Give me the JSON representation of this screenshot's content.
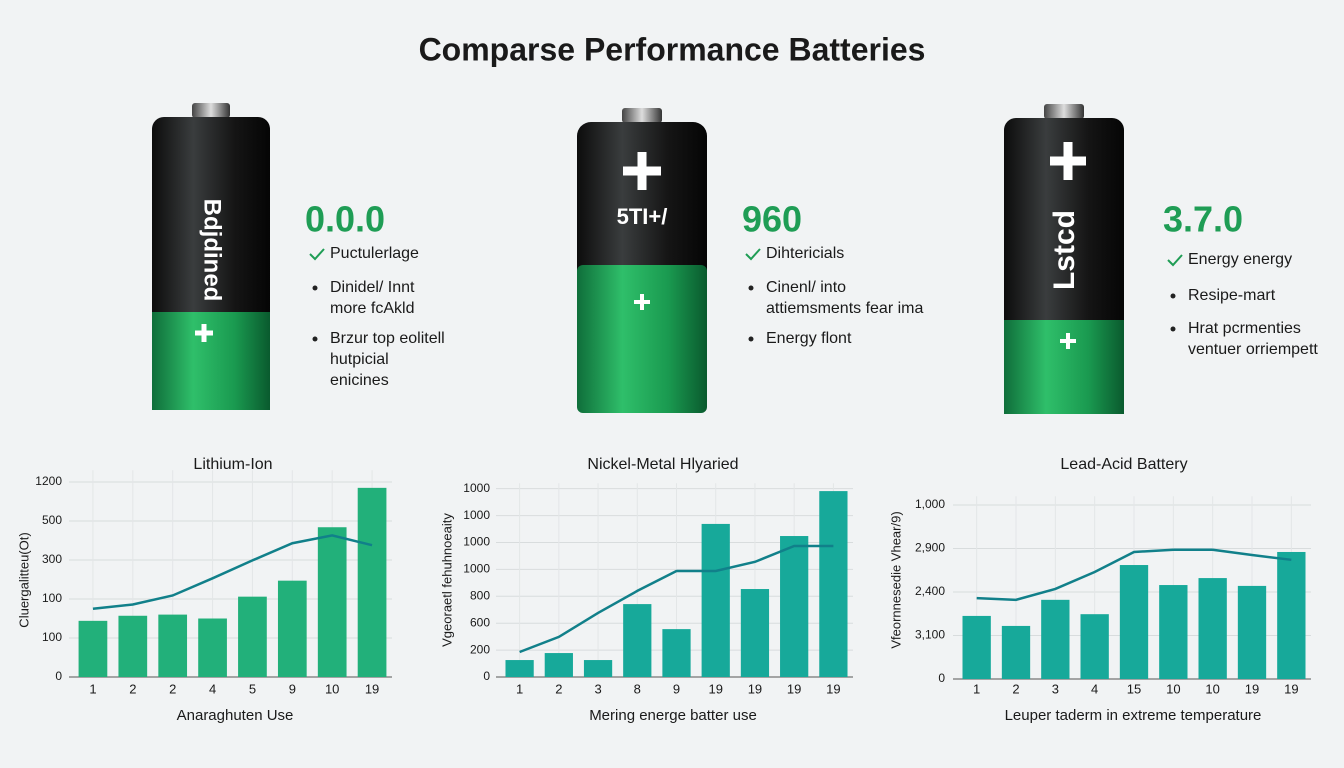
{
  "title": "Comparse Performance Batteries",
  "panels": [
    {
      "battery_label": "Bdjdined",
      "stat": "0.0.0",
      "items": [
        [
          "Puctulerlage"
        ],
        [
          "Dinidel/ Innt",
          "more fcAkld"
        ],
        [
          "Brzur top eolitell",
          "hutpicial",
          "enicines"
        ]
      ]
    },
    {
      "battery_label": "5TI+/",
      "stat": "960",
      "items": [
        [
          "Dihtericials"
        ],
        [
          "Cinenl/ into",
          "attiemsments fear ima"
        ],
        [
          "Energy flont"
        ]
      ]
    },
    {
      "battery_label": "Lstcd",
      "stat": "3.7.0",
      "items": [
        [
          "Energy energy"
        ],
        [
          "Resipe-mart"
        ],
        [
          "Hrat pcrmenties",
          "ventuer orriempett"
        ]
      ]
    }
  ],
  "chart_data": [
    {
      "type": "combo",
      "title": "Lithium-Ion",
      "x_label": "Anaraghuten Use",
      "y_label": "Cluergalitteu(Ot)",
      "categories": [
        "1",
        "2",
        "2",
        "4",
        "5",
        "9",
        "10",
        "19"
      ],
      "series": [
        {
          "type": "bar",
          "color": "#22b07a",
          "values": [
            1.44,
            1.57,
            1.6,
            1.5,
            2.06,
            2.47,
            3.84,
            4.85
          ]
        },
        {
          "type": "line",
          "color": "#11808a",
          "values": [
            1.75,
            1.86,
            2.09,
            2.53,
            2.99,
            3.43,
            3.63,
            3.38
          ]
        }
      ],
      "ylim": [
        0,
        5.3
      ],
      "yticks": [
        {
          "value": 0,
          "label": "0"
        },
        {
          "value": 1,
          "label": "100"
        },
        {
          "value": 2,
          "label": "100"
        },
        {
          "value": 3,
          "label": "300"
        },
        {
          "value": 4,
          "label": "500"
        },
        {
          "value": 5,
          "label": "1200"
        }
      ],
      "grid": true
    },
    {
      "type": "combo",
      "title": "Nickel-Metal Hlyaried",
      "x_label": "Mering energe batter use",
      "y_label": "Vgeoraetl fehuhnoeaity",
      "categories": [
        "1",
        "2",
        "3",
        "8",
        "9",
        "19",
        "19",
        "19",
        "19"
      ],
      "series": [
        {
          "type": "bar",
          "color": "#17a99a",
          "values": [
            0.63,
            0.89,
            0.63,
            2.71,
            1.78,
            5.69,
            3.27,
            5.24,
            6.91
          ]
        },
        {
          "type": "line",
          "color": "#11808a",
          "values": [
            0.93,
            1.49,
            2.38,
            3.2,
            3.94,
            3.94,
            4.28,
            4.87,
            4.87
          ]
        }
      ],
      "ylim": [
        0,
        7.2
      ],
      "yticks": [
        {
          "value": 0,
          "label": "0"
        },
        {
          "value": 1,
          "label": "200"
        },
        {
          "value": 2,
          "label": "600"
        },
        {
          "value": 3,
          "label": "800"
        },
        {
          "value": 4,
          "label": "1000"
        },
        {
          "value": 5,
          "label": "1000"
        },
        {
          "value": 6,
          "label": "1000"
        },
        {
          "value": 7,
          "label": "1000"
        }
      ],
      "grid": true
    },
    {
      "type": "combo",
      "title": "Lead-Acid Battery",
      "x_label": "Leuper taderm in extreme temperature",
      "y_label": "Vfeornnesedie Vhear/9)",
      "categories": [
        "1",
        "2",
        "3",
        "4",
        "15",
        "10",
        "10",
        "19",
        "19"
      ],
      "series": [
        {
          "type": "bar",
          "color": "#17a99a",
          "values": [
            1.45,
            1.22,
            1.82,
            1.49,
            2.62,
            2.16,
            2.32,
            2.14,
            2.92
          ]
        },
        {
          "type": "line",
          "color": "#11808a",
          "values": [
            1.86,
            1.82,
            2.07,
            2.46,
            2.92,
            2.97,
            2.97,
            2.85,
            2.74
          ]
        }
      ],
      "ylim": [
        0,
        4.2
      ],
      "yticks": [
        {
          "value": 0,
          "label": "0"
        },
        {
          "value": 1,
          "label": "3,100"
        },
        {
          "value": 2,
          "label": "2,400"
        },
        {
          "value": 3,
          "label": "2,900"
        },
        {
          "value": 4,
          "label": "1,000"
        }
      ],
      "grid": true
    }
  ]
}
